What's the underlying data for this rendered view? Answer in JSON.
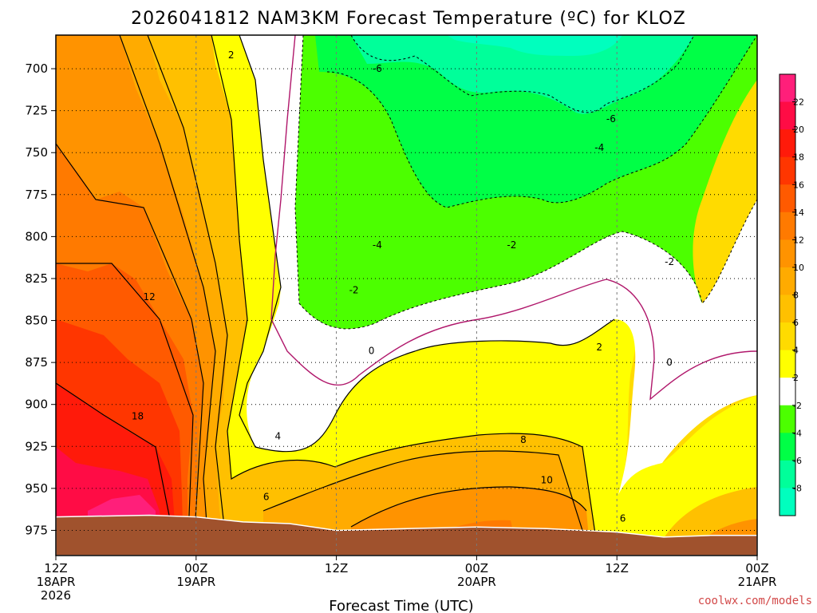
{
  "chart_data": {
    "type": "heatmap",
    "title": "2026041812 NAM3KM Forecast Temperature (ºC) for KLOZ",
    "xlabel": "Forecast Time (UTC)",
    "ylabel": "",
    "x_hours": [
      0,
      12,
      24,
      36,
      48,
      60
    ],
    "x_ticks": [
      {
        "hour": 0,
        "line1": "12Z",
        "line2": "18APR",
        "line3": "2026"
      },
      {
        "hour": 12,
        "line1": "00Z",
        "line2": "19APR",
        "line3": ""
      },
      {
        "hour": 24,
        "line1": "12Z",
        "line2": "",
        "line3": ""
      },
      {
        "hour": 36,
        "line1": "00Z",
        "line2": "20APR",
        "line3": ""
      },
      {
        "hour": 48,
        "line1": "12Z",
        "line2": "",
        "line3": ""
      },
      {
        "hour": 60,
        "line1": "00Z",
        "line2": "21APR",
        "line3": ""
      }
    ],
    "xlim": [
      0,
      60
    ],
    "y_pressure_levels": [
      700,
      725,
      750,
      775,
      800,
      825,
      850,
      875,
      900,
      925,
      950,
      975
    ],
    "ylim": [
      680,
      990
    ],
    "colorbar_ticks": [
      22,
      20,
      18,
      16,
      14,
      12,
      10,
      8,
      6,
      4,
      2,
      -2,
      -4,
      -6,
      -8
    ],
    "colorbar_bins": [
      {
        "lo": 22,
        "color": "#ff1f7a"
      },
      {
        "lo": 20,
        "color": "#ff0c45"
      },
      {
        "lo": 18,
        "color": "#ff1a0a"
      },
      {
        "lo": 16,
        "color": "#ff3600"
      },
      {
        "lo": 14,
        "color": "#ff5a00"
      },
      {
        "lo": 12,
        "color": "#ff7a00"
      },
      {
        "lo": 10,
        "color": "#ff9300"
      },
      {
        "lo": 8,
        "color": "#ffab00"
      },
      {
        "lo": 6,
        "color": "#ffc000"
      },
      {
        "lo": 4,
        "color": "#ffdb00"
      },
      {
        "lo": 2,
        "color": "#ffff00"
      },
      {
        "lo": -2,
        "color": "#ffffff"
      },
      {
        "lo": -4,
        "color": "#4cff00"
      },
      {
        "lo": -6,
        "color": "#00ff46"
      },
      {
        "lo": -8,
        "color": "#00ff9a"
      },
      {
        "lo": -10,
        "color": "#00ffbe"
      }
    ],
    "contour_labels": [
      {
        "text": "2",
        "hour": 15,
        "p": 692
      },
      {
        "text": "-6",
        "hour": 27.5,
        "p": 700
      },
      {
        "text": "-6",
        "hour": 47.5,
        "p": 730
      },
      {
        "text": "-4",
        "hour": 46.5,
        "p": 747
      },
      {
        "text": "-4",
        "hour": 27.5,
        "p": 805
      },
      {
        "text": "-2",
        "hour": 39,
        "p": 805
      },
      {
        "text": "-2",
        "hour": 52.5,
        "p": 815
      },
      {
        "text": "-2",
        "hour": 25.5,
        "p": 832
      },
      {
        "text": "12",
        "hour": 8,
        "p": 836
      },
      {
        "text": "0",
        "hour": 27,
        "p": 868
      },
      {
        "text": "2",
        "hour": 46.5,
        "p": 866
      },
      {
        "text": "0",
        "hour": 52.5,
        "p": 875
      },
      {
        "text": "18",
        "hour": 7,
        "p": 907
      },
      {
        "text": "4",
        "hour": 19,
        "p": 919
      },
      {
        "text": "8",
        "hour": 40,
        "p": 921
      },
      {
        "text": "6",
        "hour": 18,
        "p": 955
      },
      {
        "text": "10",
        "hour": 42,
        "p": 945
      },
      {
        "text": "6",
        "hour": 48.5,
        "p": 968
      }
    ],
    "terrain_color": "#a0522d",
    "surface_pressure": [
      {
        "hour": 0,
        "p": 967
      },
      {
        "hour": 8,
        "p": 966
      },
      {
        "hour": 12,
        "p": 967
      },
      {
        "hour": 16,
        "p": 970
      },
      {
        "hour": 20,
        "p": 971
      },
      {
        "hour": 24,
        "p": 975
      },
      {
        "hour": 30,
        "p": 974
      },
      {
        "hour": 36,
        "p": 973
      },
      {
        "hour": 42,
        "p": 974
      },
      {
        "hour": 48,
        "p": 976
      },
      {
        "hour": 52,
        "p": 979
      },
      {
        "hour": 56,
        "p": 978
      },
      {
        "hour": 60,
        "p": 978
      }
    ],
    "credit": "coolwx.com/models"
  }
}
